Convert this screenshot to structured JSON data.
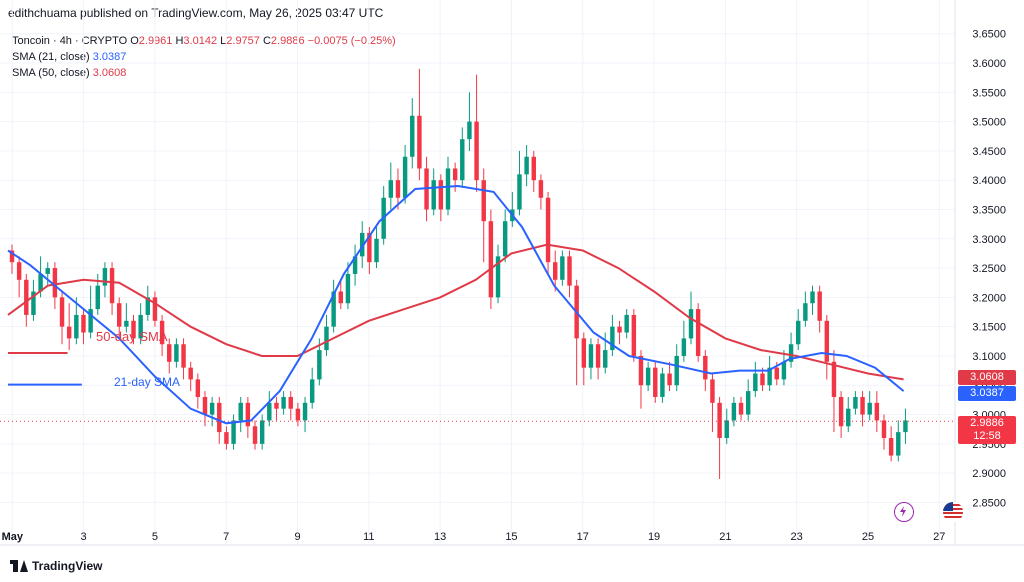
{
  "header": {
    "text": "edithchuama published on TradingView.com, May 26, 2025 03:47 UTC"
  },
  "legend": {
    "symbol": "Toncoin · 4h · CRYPTO",
    "ohlc": [
      {
        "k": "O",
        "v": "2.9961"
      },
      {
        "k": "H",
        "v": "3.0142"
      },
      {
        "k": "L",
        "v": "2.9757"
      },
      {
        "k": "C",
        "v": "2.9886"
      }
    ],
    "change": "−0.0075 (−0.25%)",
    "sma21_label": "SMA (21, close)",
    "sma21_value": "3.0387",
    "sma50_label": "SMA (50, close)",
    "sma50_value": "3.0608"
  },
  "annotations": {
    "sma50_text": "50-day SMA",
    "sma21_text": "21-day SMA"
  },
  "price_tags": {
    "sma50": "3.0608",
    "sma21": "3.0387",
    "last": "2.9886",
    "countdown": "12:58"
  },
  "footer": {
    "brand": "TradingView"
  },
  "colors": {
    "up": "#089981",
    "down": "#f23645",
    "sma21": "#2962ff",
    "sma50": "#e03a48"
  },
  "icons": [
    "lightning-icon",
    "flag-icon"
  ],
  "chart_data": {
    "type": "candlestick",
    "symbol": "Toncoin",
    "interval": "4h",
    "ylim": [
      2.82,
      3.67
    ],
    "y_ticks": [
      "3.6500",
      "3.6000",
      "3.5500",
      "3.5000",
      "3.4500",
      "3.4000",
      "3.3500",
      "3.3000",
      "3.2500",
      "3.2000",
      "3.1500",
      "3.1000",
      "3.0500",
      "3.0000",
      "2.9500",
      "2.9000",
      "2.8500"
    ],
    "x_ticks": [
      {
        "label": "May",
        "day": 1
      },
      {
        "label": "3",
        "day": 3
      },
      {
        "label": "5",
        "day": 5
      },
      {
        "label": "7",
        "day": 7
      },
      {
        "label": "9",
        "day": 9
      },
      {
        "label": "11",
        "day": 11
      },
      {
        "label": "13",
        "day": 13
      },
      {
        "label": "15",
        "day": 15
      },
      {
        "label": "17",
        "day": 17
      },
      {
        "label": "19",
        "day": 19
      },
      {
        "label": "21",
        "day": 21
      },
      {
        "label": "23",
        "day": 23
      },
      {
        "label": "25",
        "day": 25
      },
      {
        "label": "27",
        "day": 27
      }
    ],
    "x_range_days": [
      0.88,
      27.3
    ],
    "candles": [
      [
        3.28,
        3.26,
        3.29,
        3.24
      ],
      [
        3.26,
        3.23,
        3.27,
        3.2
      ],
      [
        3.23,
        3.17,
        3.24,
        3.15
      ],
      [
        3.17,
        3.21,
        3.23,
        3.16
      ],
      [
        3.21,
        3.24,
        3.27,
        3.2
      ],
      [
        3.24,
        3.25,
        3.26,
        3.22
      ],
      [
        3.25,
        3.2,
        3.26,
        3.18
      ],
      [
        3.2,
        3.15,
        3.21,
        3.12
      ],
      [
        3.15,
        3.13,
        3.19,
        3.11
      ],
      [
        3.13,
        3.17,
        3.2,
        3.12
      ],
      [
        3.17,
        3.14,
        3.18,
        3.12
      ],
      [
        3.14,
        3.18,
        3.22,
        3.13
      ],
      [
        3.18,
        3.22,
        3.24,
        3.17
      ],
      [
        3.22,
        3.25,
        3.26,
        3.2
      ],
      [
        3.25,
        3.19,
        3.26,
        3.17
      ],
      [
        3.19,
        3.15,
        3.2,
        3.13
      ],
      [
        3.15,
        3.16,
        3.19,
        3.14
      ],
      [
        3.16,
        3.13,
        3.17,
        3.12
      ],
      [
        3.13,
        3.17,
        3.19,
        3.12
      ],
      [
        3.17,
        3.2,
        3.22,
        3.16
      ],
      [
        3.2,
        3.16,
        3.21,
        3.15
      ],
      [
        3.16,
        3.12,
        3.17,
        3.1
      ],
      [
        3.12,
        3.09,
        3.13,
        3.07
      ],
      [
        3.09,
        3.12,
        3.13,
        3.08
      ],
      [
        3.12,
        3.08,
        3.13,
        3.06
      ],
      [
        3.08,
        3.06,
        3.09,
        3.04
      ],
      [
        3.06,
        3.03,
        3.07,
        3.01
      ],
      [
        3.03,
        3.0,
        3.04,
        2.98
      ],
      [
        3.0,
        3.02,
        3.03,
        2.98
      ],
      [
        3.02,
        2.97,
        3.03,
        2.95
      ],
      [
        2.97,
        2.95,
        2.98,
        2.94
      ],
      [
        2.95,
        2.99,
        3.0,
        2.94
      ],
      [
        2.99,
        3.02,
        3.03,
        2.97
      ],
      [
        3.02,
        2.98,
        3.03,
        2.96
      ],
      [
        2.98,
        2.95,
        2.99,
        2.94
      ],
      [
        2.95,
        2.99,
        3.0,
        2.94
      ],
      [
        2.99,
        3.02,
        3.04,
        2.98
      ],
      [
        3.02,
        3.01,
        3.03,
        2.99
      ],
      [
        3.01,
        3.03,
        3.04,
        3.0
      ],
      [
        3.03,
        3.01,
        3.04,
        2.99
      ],
      [
        3.01,
        2.99,
        3.02,
        2.98
      ],
      [
        2.99,
        3.02,
        3.03,
        2.97
      ],
      [
        3.02,
        3.06,
        3.08,
        3.01
      ],
      [
        3.06,
        3.11,
        3.13,
        3.05
      ],
      [
        3.11,
        3.15,
        3.17,
        3.1
      ],
      [
        3.15,
        3.21,
        3.23,
        3.14
      ],
      [
        3.21,
        3.19,
        3.23,
        3.18
      ],
      [
        3.19,
        3.24,
        3.26,
        3.18
      ],
      [
        3.24,
        3.27,
        3.29,
        3.22
      ],
      [
        3.27,
        3.31,
        3.33,
        3.25
      ],
      [
        3.31,
        3.26,
        3.32,
        3.24
      ],
      [
        3.26,
        3.3,
        3.32,
        3.25
      ],
      [
        3.3,
        3.37,
        3.39,
        3.29
      ],
      [
        3.37,
        3.4,
        3.43,
        3.35
      ],
      [
        3.4,
        3.37,
        3.42,
        3.35
      ],
      [
        3.37,
        3.44,
        3.46,
        3.36
      ],
      [
        3.44,
        3.51,
        3.54,
        3.42
      ],
      [
        3.51,
        3.42,
        3.59,
        3.4
      ],
      [
        3.42,
        3.35,
        3.44,
        3.33
      ],
      [
        3.35,
        3.4,
        3.42,
        3.34
      ],
      [
        3.4,
        3.35,
        3.41,
        3.33
      ],
      [
        3.35,
        3.42,
        3.44,
        3.34
      ],
      [
        3.42,
        3.4,
        3.43,
        3.38
      ],
      [
        3.4,
        3.47,
        3.49,
        3.39
      ],
      [
        3.47,
        3.5,
        3.55,
        3.45
      ],
      [
        3.5,
        3.4,
        3.58,
        3.38
      ],
      [
        3.4,
        3.33,
        3.42,
        3.26
      ],
      [
        3.33,
        3.2,
        3.35,
        3.18
      ],
      [
        3.2,
        3.27,
        3.29,
        3.19
      ],
      [
        3.27,
        3.33,
        3.35,
        3.26
      ],
      [
        3.33,
        3.35,
        3.38,
        3.32
      ],
      [
        3.35,
        3.41,
        3.45,
        3.34
      ],
      [
        3.41,
        3.44,
        3.46,
        3.39
      ],
      [
        3.44,
        3.4,
        3.45,
        3.38
      ],
      [
        3.4,
        3.37,
        3.41,
        3.35
      ],
      [
        3.37,
        3.26,
        3.38,
        3.24
      ],
      [
        3.26,
        3.23,
        3.28,
        3.21
      ],
      [
        3.23,
        3.27,
        3.28,
        3.22
      ],
      [
        3.27,
        3.22,
        3.28,
        3.2
      ],
      [
        3.22,
        3.13,
        3.23,
        3.05
      ],
      [
        3.13,
        3.08,
        3.14,
        3.05
      ],
      [
        3.08,
        3.12,
        3.13,
        3.06
      ],
      [
        3.12,
        3.08,
        3.13,
        3.06
      ],
      [
        3.08,
        3.11,
        3.14,
        3.07
      ],
      [
        3.11,
        3.15,
        3.17,
        3.1
      ],
      [
        3.15,
        3.14,
        3.16,
        3.12
      ],
      [
        3.14,
        3.17,
        3.18,
        3.13
      ],
      [
        3.17,
        3.1,
        3.18,
        3.09
      ],
      [
        3.1,
        3.05,
        3.11,
        3.01
      ],
      [
        3.05,
        3.08,
        3.09,
        3.04
      ],
      [
        3.08,
        3.03,
        3.09,
        3.02
      ],
      [
        3.03,
        3.07,
        3.08,
        3.02
      ],
      [
        3.07,
        3.05,
        3.09,
        3.04
      ],
      [
        3.05,
        3.1,
        3.12,
        3.04
      ],
      [
        3.1,
        3.13,
        3.16,
        3.09
      ],
      [
        3.13,
        3.18,
        3.21,
        3.12
      ],
      [
        3.18,
        3.1,
        3.19,
        3.09
      ],
      [
        3.1,
        3.06,
        3.11,
        3.04
      ],
      [
        3.06,
        3.02,
        3.07,
        2.97
      ],
      [
        3.02,
        2.96,
        3.03,
        2.89
      ],
      [
        2.96,
        2.99,
        3.01,
        2.95
      ],
      [
        2.99,
        3.02,
        3.03,
        2.98
      ],
      [
        3.02,
        3.0,
        3.03,
        2.99
      ],
      [
        3.0,
        3.04,
        3.06,
        2.99
      ],
      [
        3.04,
        3.07,
        3.09,
        3.03
      ],
      [
        3.07,
        3.05,
        3.08,
        3.04
      ],
      [
        3.05,
        3.08,
        3.1,
        3.04
      ],
      [
        3.08,
        3.06,
        3.09,
        3.05
      ],
      [
        3.06,
        3.09,
        3.11,
        3.05
      ],
      [
        3.09,
        3.12,
        3.14,
        3.08
      ],
      [
        3.12,
        3.16,
        3.18,
        3.11
      ],
      [
        3.16,
        3.19,
        3.21,
        3.15
      ],
      [
        3.19,
        3.21,
        3.22,
        3.17
      ],
      [
        3.21,
        3.16,
        3.22,
        3.14
      ],
      [
        3.16,
        3.09,
        3.17,
        3.06
      ],
      [
        3.09,
        3.03,
        3.11,
        2.97
      ],
      [
        3.03,
        2.98,
        3.04,
        2.96
      ],
      [
        2.98,
        3.01,
        3.03,
        2.97
      ],
      [
        3.01,
        3.03,
        3.04,
        3.0
      ],
      [
        3.03,
        3.0,
        3.04,
        2.98
      ],
      [
        3.0,
        3.02,
        3.04,
        2.99
      ],
      [
        3.02,
        2.99,
        3.04,
        2.97
      ],
      [
        2.99,
        2.96,
        3.0,
        2.94
      ],
      [
        2.96,
        2.93,
        2.98,
        2.92
      ],
      [
        2.93,
        2.97,
        2.99,
        2.92
      ],
      [
        2.97,
        2.99,
        3.01,
        2.95
      ]
    ],
    "sma21": [
      [
        0.88,
        3.28
      ],
      [
        1.5,
        3.255
      ],
      [
        2.3,
        3.215
      ],
      [
        3.0,
        3.18
      ],
      [
        4.0,
        3.13
      ],
      [
        5.0,
        3.065
      ],
      [
        6.0,
        3.01
      ],
      [
        7.0,
        2.985
      ],
      [
        7.7,
        2.99
      ],
      [
        8.5,
        3.04
      ],
      [
        9.4,
        3.13
      ],
      [
        10.3,
        3.24
      ],
      [
        11.3,
        3.33
      ],
      [
        12.3,
        3.385
      ],
      [
        13.5,
        3.39
      ],
      [
        14.5,
        3.38
      ],
      [
        15.3,
        3.32
      ],
      [
        16.2,
        3.22
      ],
      [
        17.3,
        3.14
      ],
      [
        18.3,
        3.1
      ],
      [
        19.5,
        3.085
      ],
      [
        20.6,
        3.07
      ],
      [
        21.4,
        3.075
      ],
      [
        22.2,
        3.075
      ],
      [
        22.8,
        3.095
      ],
      [
        23.7,
        3.105
      ],
      [
        24.4,
        3.1
      ],
      [
        25.2,
        3.08
      ],
      [
        26.0,
        3.04
      ]
    ],
    "sma50": [
      [
        0.88,
        3.17
      ],
      [
        2.0,
        3.22
      ],
      [
        3.0,
        3.23
      ],
      [
        4.0,
        3.225
      ],
      [
        5.0,
        3.19
      ],
      [
        6.0,
        3.15
      ],
      [
        7.0,
        3.12
      ],
      [
        8.0,
        3.1
      ],
      [
        9.0,
        3.1
      ],
      [
        10.0,
        3.13
      ],
      [
        11.0,
        3.16
      ],
      [
        12.0,
        3.18
      ],
      [
        13.0,
        3.2
      ],
      [
        14.0,
        3.23
      ],
      [
        15.0,
        3.275
      ],
      [
        16.0,
        3.29
      ],
      [
        17.0,
        3.28
      ],
      [
        18.0,
        3.25
      ],
      [
        19.0,
        3.21
      ],
      [
        20.0,
        3.165
      ],
      [
        21.0,
        3.13
      ],
      [
        22.0,
        3.11
      ],
      [
        23.0,
        3.1
      ],
      [
        24.0,
        3.085
      ],
      [
        25.0,
        3.07
      ],
      [
        26.0,
        3.06
      ]
    ],
    "horizontal_segments": [
      {
        "color": "sma50",
        "from_day": 0.88,
        "to_day": 2.55,
        "value": 3.105
      },
      {
        "color": "sma21",
        "from_day": 0.88,
        "to_day": 2.95,
        "value": 3.051
      }
    ],
    "last_price": 2.9886
  }
}
